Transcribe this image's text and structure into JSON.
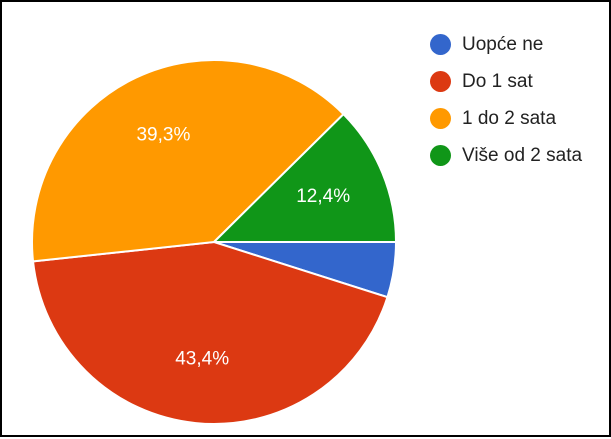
{
  "chart_data": {
    "type": "pie",
    "title": "",
    "legend_position": "right",
    "slices": [
      {
        "label": "Uopće ne",
        "value": 4.9,
        "value_label": "",
        "color": "#3366cc"
      },
      {
        "label": "Do 1 sat",
        "value": 43.4,
        "value_label": "43,4%",
        "color": "#dc3912"
      },
      {
        "label": "1 do 2 sata",
        "value": 39.3,
        "value_label": "39,3%",
        "color": "#ff9900"
      },
      {
        "label": "Više od 2 sata",
        "value": 12.4,
        "value_label": "12,4%",
        "color": "#109618"
      }
    ]
  }
}
